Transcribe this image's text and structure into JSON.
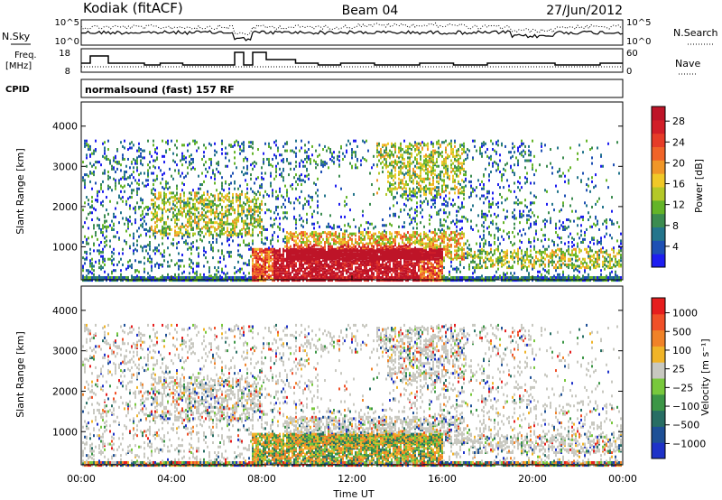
{
  "header": {
    "station": "Kodiak (fitACF)",
    "beam": "Beam 04",
    "date": "27/Jun/2012"
  },
  "top_panels": {
    "nsky_label": "N.Sky",
    "nsearch_label": "N.Search",
    "freq_label_top": "Freq.",
    "freq_label_unit": "[MHz]",
    "nave_label": "Nave",
    "cpid_label": "CPID",
    "cpid_text": "normalsound (fast) 157 RF",
    "noise_ticks": [
      "10^5",
      "10^0"
    ],
    "freq_ticks": [
      "18",
      "8"
    ],
    "nave_ticks": [
      "60",
      "0"
    ]
  },
  "chart_data": [
    {
      "type": "heatmap",
      "title": "",
      "xlabel": "Time UT",
      "ylabel": "Slant Range [km]",
      "xticks": [
        "00:00",
        "04:00",
        "08:00",
        "12:00",
        "16:00",
        "20:00",
        "00:00"
      ],
      "yticks": [
        "1000",
        "2000",
        "3000",
        "4000"
      ],
      "xlim": [
        0,
        24
      ],
      "ylim": [
        180,
        4600
      ],
      "colorbar": {
        "label": "Power [dB]",
        "ticks": [
          "4",
          "8",
          "12",
          "16",
          "20",
          "24",
          "28"
        ],
        "colors": [
          "#1e1ef0",
          "#1e50b4",
          "#24758c",
          "#3c8c50",
          "#64b428",
          "#b4c828",
          "#f0c828",
          "#f09628",
          "#f06428",
          "#e63c28",
          "#d21e28",
          "#be1428"
        ]
      }
    },
    {
      "type": "heatmap",
      "title": "",
      "xlabel": "Time UT",
      "ylabel": "Slant Range [km]",
      "xticks": [
        "00:00",
        "04:00",
        "08:00",
        "12:00",
        "16:00",
        "20:00",
        "00:00"
      ],
      "yticks": [
        "1000",
        "2000",
        "3000",
        "4000"
      ],
      "xlim": [
        0,
        24
      ],
      "ylim": [
        180,
        4600
      ],
      "colorbar": {
        "label": "Velocity [m s⁻¹]",
        "ticks": [
          "1000",
          "500",
          "100",
          "25",
          "−25",
          "−100",
          "−500",
          "−1000"
        ],
        "colors": [
          "#1e32c8",
          "#1e5096",
          "#286e64",
          "#3c9646",
          "#78c83c",
          "#c8c8c0",
          "#f0b428",
          "#f08228",
          "#f05028",
          "#e61e1e"
        ]
      }
    }
  ]
}
